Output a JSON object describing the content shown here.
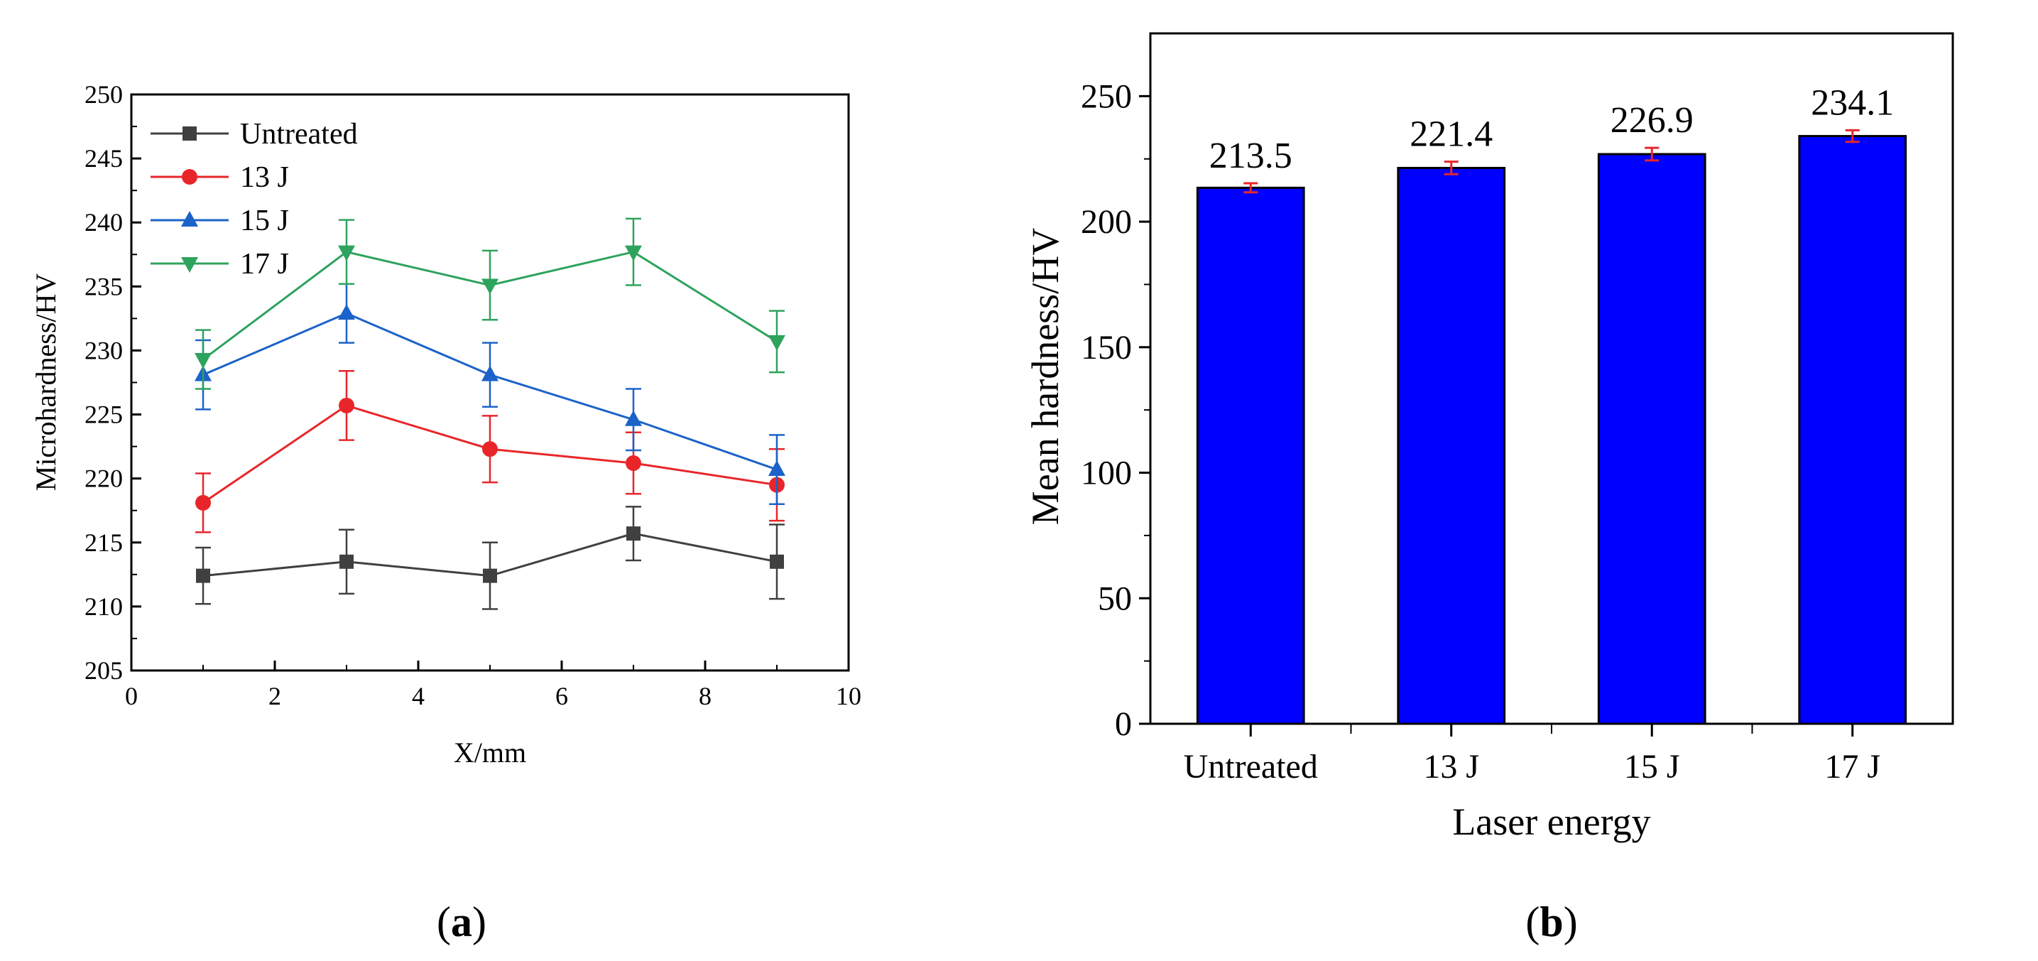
{
  "chart_data": [
    {
      "id": "a",
      "type": "line",
      "subcaption": "a",
      "xlabel": "X/mm",
      "ylabel": "Microhardness/HV",
      "xlim": [
        0,
        10
      ],
      "ylim": [
        205,
        250
      ],
      "xticks": [
        "0",
        "2",
        "4",
        "6",
        "8",
        "10"
      ],
      "yticks": [
        "205",
        "210",
        "215",
        "220",
        "225",
        "230",
        "235",
        "240",
        "245",
        "250"
      ],
      "x": [
        1,
        3,
        5,
        7,
        9
      ],
      "legend_position": "top-left",
      "series": [
        {
          "name": "Untreated",
          "color": "#404040",
          "marker": "square",
          "values": [
            212.4,
            213.5,
            212.4,
            215.7,
            213.5
          ],
          "errors": [
            2.2,
            2.5,
            2.6,
            2.1,
            2.9
          ]
        },
        {
          "name": "13 J",
          "color": "#e8262a",
          "marker": "circle",
          "values": [
            218.1,
            225.7,
            222.3,
            221.2,
            219.5
          ],
          "errors": [
            2.3,
            2.7,
            2.6,
            2.4,
            2.8
          ]
        },
        {
          "name": "15 J",
          "color": "#1b63c9",
          "marker": "triangle-up",
          "values": [
            228.1,
            232.9,
            228.1,
            224.6,
            220.7
          ],
          "errors": [
            2.7,
            2.3,
            2.5,
            2.4,
            2.7
          ]
        },
        {
          "name": "17 J",
          "color": "#2ea35d",
          "marker": "triangle-down",
          "values": [
            229.3,
            237.7,
            235.1,
            237.7,
            230.7
          ],
          "errors": [
            2.3,
            2.5,
            2.7,
            2.6,
            2.4
          ]
        }
      ]
    },
    {
      "id": "b",
      "type": "bar",
      "subcaption": "b",
      "xlabel": "Laser energy",
      "ylabel": "Mean hardness/HV",
      "ylim": [
        0,
        275
      ],
      "yticks": [
        "0",
        "50",
        "100",
        "150",
        "200",
        "250"
      ],
      "categories": [
        "Untreated",
        "13 J",
        "15 J",
        "17 J"
      ],
      "values": [
        213.5,
        221.4,
        226.9,
        234.1
      ],
      "value_labels": [
        "213.5",
        "221.4",
        "226.9",
        "234.1"
      ],
      "errors": [
        1.8,
        2.5,
        2.5,
        2.3
      ],
      "bar_color": "#0000ff",
      "error_color": "#e8262a"
    }
  ]
}
